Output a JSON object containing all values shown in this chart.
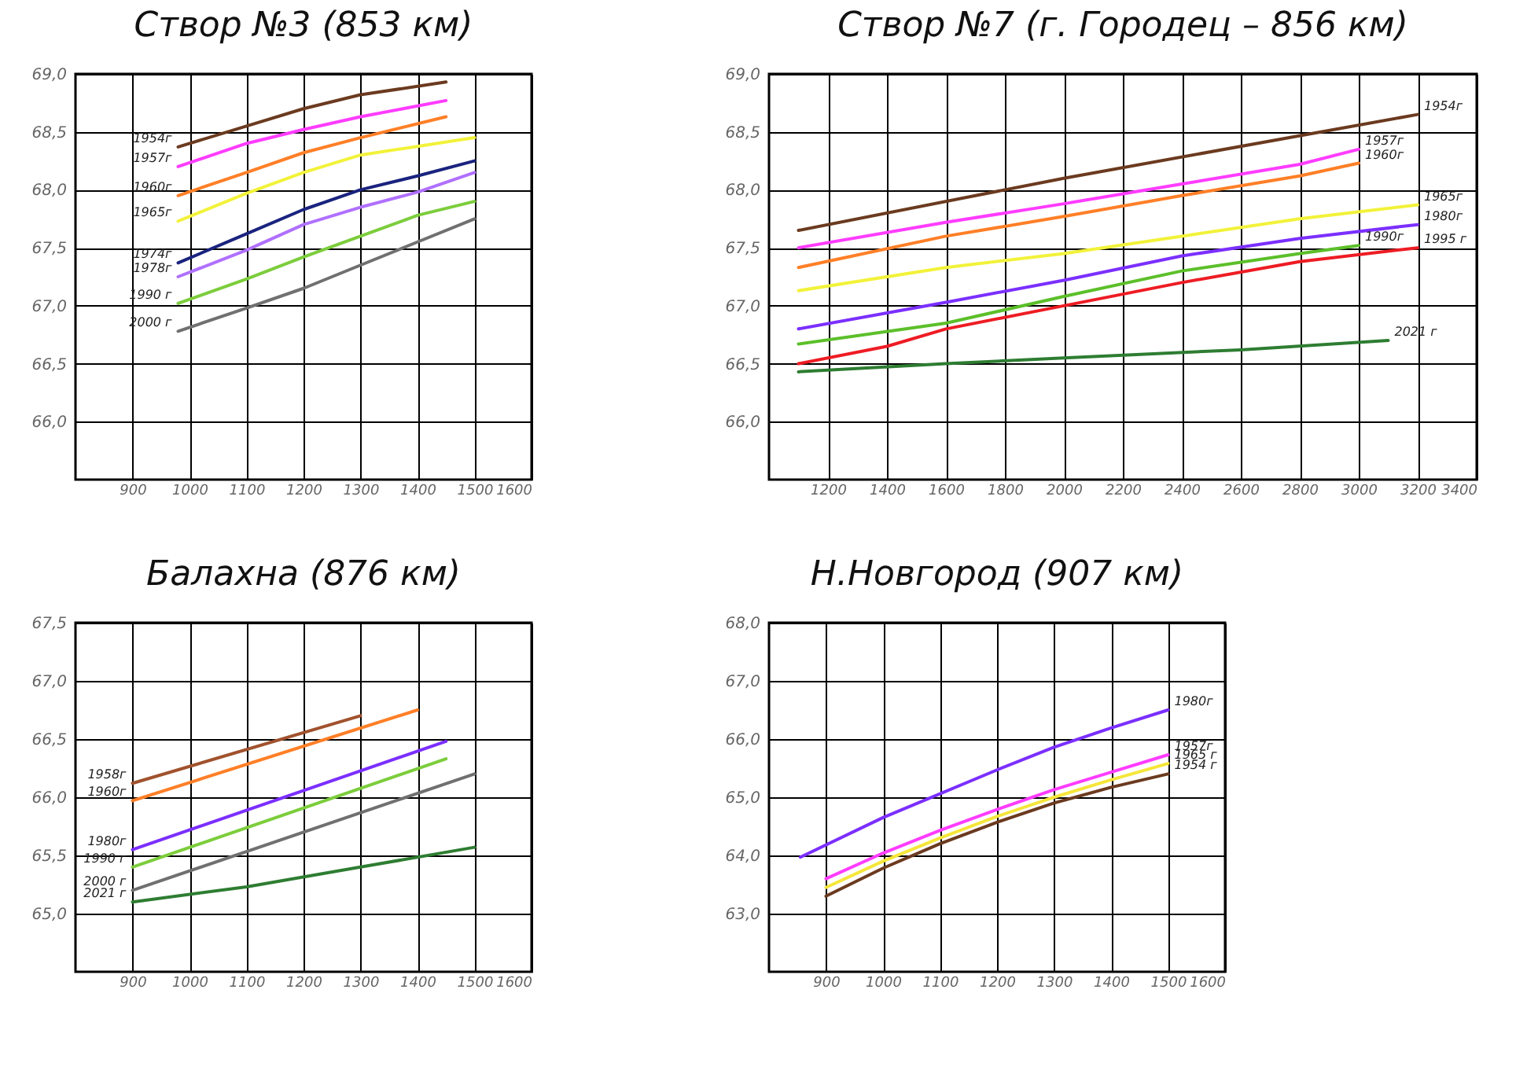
{
  "chart_data": [
    {
      "type": "line",
      "title": "Створ №3 (853 км)",
      "xlim": [
        800,
        1600
      ],
      "xticks": [
        900,
        1000,
        1100,
        1200,
        1300,
        1400,
        1500,
        1600
      ],
      "ylim": [
        65.5,
        69.0
      ],
      "yticks": [
        {
          "value": 66,
          "label": "66,0"
        },
        {
          "value": 66.5,
          "label": "66,5"
        },
        {
          "value": 67,
          "label": "67,0"
        },
        {
          "value": 67.5,
          "label": "67,5"
        },
        {
          "value": 68,
          "label": "68,0"
        },
        {
          "value": 68.5,
          "label": "68,5"
        },
        {
          "value": 69,
          "label": "69,0"
        }
      ],
      "grid": true,
      "series": [
        {
          "name": "1954г",
          "color": "#6b3a1f",
          "x": [
            980,
            1100,
            1200,
            1300,
            1450
          ],
          "values": [
            68.37,
            68.55,
            68.7,
            68.82,
            68.93
          ]
        },
        {
          "name": "1957г",
          "color": "#ff3cff",
          "x": [
            980,
            1100,
            1200,
            1300,
            1450
          ],
          "values": [
            68.2,
            68.4,
            68.52,
            68.63,
            68.77
          ]
        },
        {
          "name": "1960г",
          "color": "#ff7f27",
          "x": [
            980,
            1100,
            1200,
            1300,
            1450
          ],
          "values": [
            67.95,
            68.15,
            68.32,
            68.45,
            68.63
          ]
        },
        {
          "name": "1965г",
          "color": "#f2f23a",
          "x": [
            980,
            1100,
            1200,
            1300,
            1500
          ],
          "values": [
            67.73,
            67.97,
            68.15,
            68.3,
            68.45
          ]
        },
        {
          "name": "1974г",
          "color": "#1a237e",
          "x": [
            980,
            1100,
            1200,
            1300,
            1400,
            1500
          ],
          "values": [
            67.37,
            67.62,
            67.83,
            68.0,
            68.12,
            68.25
          ]
        },
        {
          "name": "1978г",
          "color": "#b070ff",
          "x": [
            980,
            1100,
            1200,
            1300,
            1400,
            1500
          ],
          "values": [
            67.25,
            67.48,
            67.7,
            67.85,
            67.98,
            68.15
          ]
        },
        {
          "name": "1990 г",
          "color": "#7ccd3c",
          "x": [
            980,
            1100,
            1200,
            1300,
            1400,
            1500
          ],
          "values": [
            67.02,
            67.23,
            67.42,
            67.6,
            67.78,
            67.9
          ]
        },
        {
          "name": "2000 г",
          "color": "#707070",
          "x": [
            980,
            1100,
            1200,
            1300,
            1400,
            1500
          ],
          "values": [
            66.78,
            66.98,
            67.15,
            67.35,
            67.55,
            67.75
          ]
        }
      ]
    },
    {
      "type": "line",
      "title": "Створ №7 (г. Городец – 856 км)",
      "xlim": [
        1000,
        3400
      ],
      "xticks": [
        1200,
        1400,
        1600,
        1800,
        2000,
        2200,
        2400,
        2600,
        2800,
        3000,
        3200,
        3400
      ],
      "ylim": [
        65.5,
        69.0
      ],
      "yticks": [
        {
          "value": 66,
          "label": "66,0"
        },
        {
          "value": 66.5,
          "label": "66,5"
        },
        {
          "value": 67,
          "label": "67,0"
        },
        {
          "value": 67.5,
          "label": "67,5"
        },
        {
          "value": 68,
          "label": "68,0"
        },
        {
          "value": 68.5,
          "label": "68,5"
        },
        {
          "value": 69,
          "label": "69,0"
        }
      ],
      "grid": true,
      "series": [
        {
          "name": "1954г",
          "color": "#6b3a1f",
          "x": [
            1100,
            2000,
            3200
          ],
          "values": [
            67.65,
            68.1,
            68.65
          ]
        },
        {
          "name": "1957г",
          "color": "#ff3cff",
          "x": [
            1100,
            1600,
            2000,
            2400,
            2800,
            3000
          ],
          "values": [
            67.5,
            67.72,
            67.88,
            68.05,
            68.22,
            68.35
          ]
        },
        {
          "name": "1960г",
          "color": "#ff7f27",
          "x": [
            1100,
            1600,
            2000,
            2400,
            2800,
            3000
          ],
          "values": [
            67.33,
            67.6,
            67.77,
            67.95,
            68.12,
            68.23
          ]
        },
        {
          "name": "1965г",
          "color": "#f2f23a",
          "x": [
            1100,
            1600,
            2000,
            2400,
            2800,
            3200
          ],
          "values": [
            67.13,
            67.33,
            67.45,
            67.6,
            67.75,
            67.87
          ]
        },
        {
          "name": "1980г",
          "color": "#7b2fff",
          "x": [
            1100,
            1600,
            2000,
            2400,
            2800,
            3200
          ],
          "values": [
            66.8,
            67.03,
            67.22,
            67.43,
            67.58,
            67.7
          ]
        },
        {
          "name": "1990г",
          "color": "#5cbf2a",
          "x": [
            1100,
            1600,
            2000,
            2400,
            2800,
            3000
          ],
          "values": [
            66.67,
            66.85,
            67.08,
            67.3,
            67.45,
            67.52
          ]
        },
        {
          "name": "1995 г",
          "color": "#ee1c24",
          "x": [
            1100,
            1400,
            1600,
            2000,
            2400,
            2800,
            3200
          ],
          "values": [
            66.5,
            66.65,
            66.8,
            67.0,
            67.2,
            67.38,
            67.5
          ]
        },
        {
          "name": "2021 г",
          "color": "#2e7d32",
          "x": [
            1100,
            1600,
            2000,
            2600,
            3100
          ],
          "values": [
            66.43,
            66.5,
            66.55,
            66.62,
            66.7
          ]
        }
      ]
    },
    {
      "type": "line",
      "title": "Балахна (876 км)",
      "xlim": [
        800,
        1600
      ],
      "xticks": [
        900,
        1000,
        1100,
        1200,
        1300,
        1400,
        1500,
        1600
      ],
      "ylim": [
        64.5,
        67.5
      ],
      "yticks": [
        {
          "value": 65,
          "label": "65,0"
        },
        {
          "value": 65.5,
          "label": "65,5"
        },
        {
          "value": 66,
          "label": "66,0"
        },
        {
          "value": 66.5,
          "label": "66,5"
        },
        {
          "value": 67,
          "label": "67,0"
        },
        {
          "value": 67.5,
          "label": "67,5"
        }
      ],
      "grid": true,
      "series": [
        {
          "name": "1958г",
          "color": "#a0522d",
          "x": [
            900,
            1300
          ],
          "values": [
            66.12,
            66.7
          ]
        },
        {
          "name": "1960г",
          "color": "#ff7f27",
          "x": [
            900,
            1400
          ],
          "values": [
            65.97,
            66.75
          ]
        },
        {
          "name": "1980г",
          "color": "#7b2fff",
          "x": [
            900,
            1450
          ],
          "values": [
            65.55,
            66.48
          ]
        },
        {
          "name": "1990 г",
          "color": "#7ccd3c",
          "x": [
            900,
            1450
          ],
          "values": [
            65.4,
            66.33
          ]
        },
        {
          "name": "2000 г",
          "color": "#707070",
          "x": [
            900,
            1500
          ],
          "values": [
            65.2,
            66.2
          ]
        },
        {
          "name": "2021 г",
          "color": "#2e7d32",
          "x": [
            900,
            1100,
            1300,
            1500
          ],
          "values": [
            65.1,
            65.23,
            65.4,
            65.57
          ]
        }
      ]
    },
    {
      "type": "line",
      "title": "Н.Новгород (907 км)",
      "xlim": [
        800,
        1600
      ],
      "xticks": [
        900,
        1000,
        1100,
        1200,
        1300,
        1400,
        1500,
        1600
      ],
      "ylim": [
        62.0,
        68.0
      ],
      "yticks": [
        {
          "value": 63,
          "label": "63,0"
        },
        {
          "value": 64,
          "label": "64,0"
        },
        {
          "value": 65,
          "label": "65,0"
        },
        {
          "value": 66,
          "label": "66,0"
        },
        {
          "value": 67,
          "label": "67,0"
        },
        {
          "value": 68,
          "label": "68,0"
        }
      ],
      "grid": true,
      "series": [
        {
          "name": "1980г",
          "color": "#7b2fff",
          "x": [
            855,
            1000,
            1200,
            1300,
            1400,
            1500
          ],
          "values": [
            63.97,
            64.65,
            65.47,
            65.86,
            66.19,
            66.5
          ]
        },
        {
          "name": "1957г",
          "color": "#ff3cff",
          "x": [
            900,
            1000,
            1100,
            1200,
            1300,
            1400,
            1500
          ],
          "values": [
            63.6,
            64.04,
            64.43,
            64.79,
            65.13,
            65.43,
            65.73
          ]
        },
        {
          "name": "1965 г",
          "color": "#f5e63a",
          "x": [
            900,
            1000,
            1100,
            1200,
            1300,
            1400,
            1500
          ],
          "values": [
            63.45,
            63.9,
            64.3,
            64.67,
            65.0,
            65.3,
            65.58
          ]
        },
        {
          "name": "1954 г",
          "color": "#6b3a1f",
          "x": [
            900,
            1000,
            1100,
            1200,
            1300,
            1400,
            1500
          ],
          "values": [
            63.3,
            63.78,
            64.2,
            64.57,
            64.9,
            65.17,
            65.4
          ]
        }
      ]
    }
  ]
}
